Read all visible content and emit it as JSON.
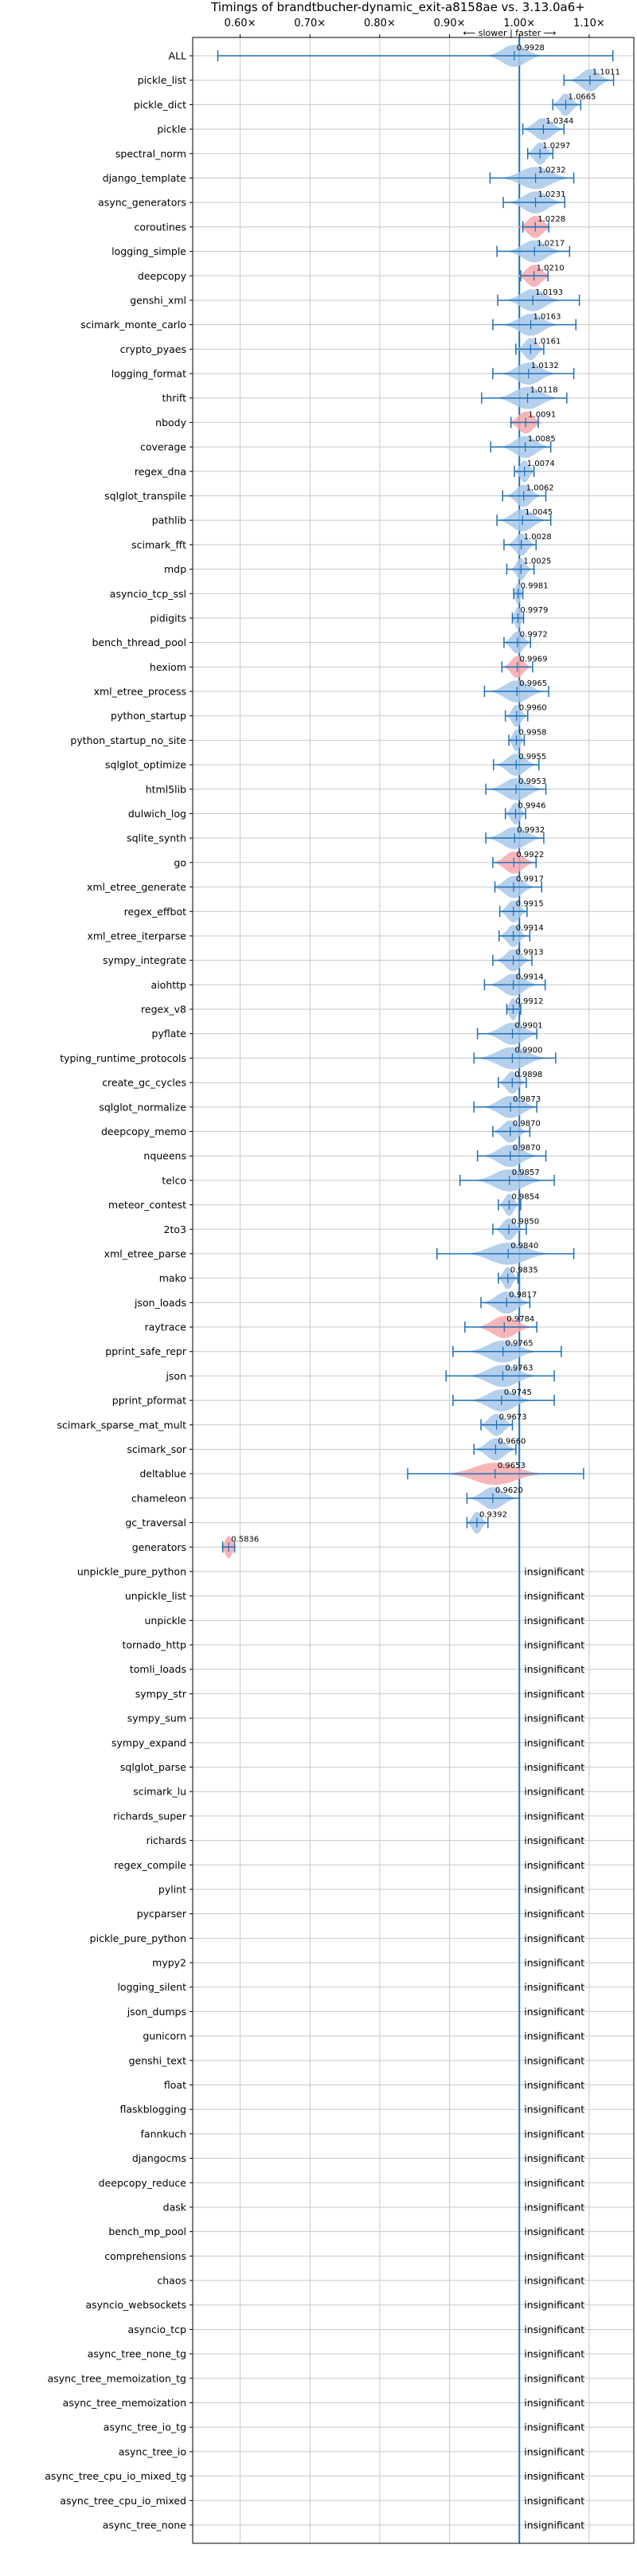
{
  "chart_data": {
    "type": "violin",
    "title": "Timings of brandtbucher-dynamic_exit-a8158ae vs. 3.13.0a6+",
    "direction_label": "⟵ slower | faster ⟶",
    "insignificant_label": "insignificant",
    "x_tick_labels": [
      "0.60×",
      "0.70×",
      "0.80×",
      "0.90×",
      "1.00×",
      "1.10×"
    ],
    "x_ticks": [
      0.6,
      0.7,
      0.8,
      0.9,
      1.0,
      1.1
    ],
    "xlim": [
      0.532,
      1.164
    ],
    "reference_line": 1.0,
    "grid": true,
    "colors": {
      "faster": "#4a90d9",
      "slower": "#f08080",
      "insig": "#4a90d9",
      "line": "#1f6fb5",
      "grid": "#c8c8c8"
    },
    "benchmarks": [
      {
        "name": "ALL",
        "value": 0.9928,
        "label": "0.9928",
        "low": 0.568,
        "high": 1.134,
        "width": 0.04,
        "color": "faster"
      },
      {
        "name": "pickle_list",
        "value": 1.1011,
        "label": "1.1011",
        "low": 1.064,
        "high": 1.135,
        "width": 0.03,
        "color": "faster"
      },
      {
        "name": "pickle_dict",
        "value": 1.0665,
        "label": "1.0665",
        "low": 1.048,
        "high": 1.088,
        "width": 0.02,
        "color": "faster"
      },
      {
        "name": "pickle",
        "value": 1.0344,
        "label": "1.0344",
        "low": 1.005,
        "high": 1.064,
        "width": 0.03,
        "color": "faster"
      },
      {
        "name": "spectral_norm",
        "value": 1.0297,
        "label": "1.0297",
        "low": 1.012,
        "high": 1.048,
        "width": 0.02,
        "color": "faster"
      },
      {
        "name": "django_template",
        "value": 1.0232,
        "label": "1.0232",
        "low": 0.958,
        "high": 1.078,
        "width": 0.05,
        "color": "faster"
      },
      {
        "name": "async_generators",
        "value": 1.0231,
        "label": "1.0231",
        "low": 0.977,
        "high": 1.065,
        "width": 0.04,
        "color": "faster"
      },
      {
        "name": "coroutines",
        "value": 1.0228,
        "label": "1.0228",
        "low": 1.005,
        "high": 1.042,
        "width": 0.025,
        "color": "slower"
      },
      {
        "name": "logging_simple",
        "value": 1.0217,
        "label": "1.0217",
        "low": 0.968,
        "high": 1.072,
        "width": 0.04,
        "color": "faster"
      },
      {
        "name": "deepcopy",
        "value": 1.021,
        "label": "1.0210",
        "low": 1.002,
        "high": 1.041,
        "width": 0.025,
        "color": "slower"
      },
      {
        "name": "genshi_xml",
        "value": 1.0193,
        "label": "1.0193",
        "low": 0.969,
        "high": 1.086,
        "width": 0.04,
        "color": "faster"
      },
      {
        "name": "scimark_monte_carlo",
        "value": 1.0163,
        "label": "1.0163",
        "low": 0.962,
        "high": 1.081,
        "width": 0.04,
        "color": "faster"
      },
      {
        "name": "crypto_pyaes",
        "value": 1.0161,
        "label": "1.0161",
        "low": 0.995,
        "high": 1.035,
        "width": 0.02,
        "color": "faster"
      },
      {
        "name": "logging_format",
        "value": 1.0132,
        "label": "1.0132",
        "low": 0.962,
        "high": 1.078,
        "width": 0.04,
        "color": "faster"
      },
      {
        "name": "thrift",
        "value": 1.0118,
        "label": "1.0118",
        "low": 0.946,
        "high": 1.068,
        "width": 0.045,
        "color": "faster"
      },
      {
        "name": "nbody",
        "value": 1.0091,
        "label": "1.0091",
        "low": 0.988,
        "high": 1.027,
        "width": 0.025,
        "color": "slower"
      },
      {
        "name": "coverage",
        "value": 1.0085,
        "label": "1.0085",
        "low": 0.959,
        "high": 1.045,
        "width": 0.035,
        "color": "faster"
      },
      {
        "name": "regex_dna",
        "value": 1.0074,
        "label": "1.0074",
        "low": 0.993,
        "high": 1.021,
        "width": 0.015,
        "color": "faster"
      },
      {
        "name": "sqlglot_transpile",
        "value": 1.0062,
        "label": "1.0062",
        "low": 0.976,
        "high": 1.038,
        "width": 0.025,
        "color": "faster"
      },
      {
        "name": "pathlib",
        "value": 1.0045,
        "label": "1.0045",
        "low": 0.968,
        "high": 1.045,
        "width": 0.035,
        "color": "faster"
      },
      {
        "name": "scimark_fft",
        "value": 1.0028,
        "label": "1.0028",
        "low": 0.978,
        "high": 1.024,
        "width": 0.02,
        "color": "faster"
      },
      {
        "name": "mdp",
        "value": 1.0025,
        "label": "1.0025",
        "low": 0.982,
        "high": 1.021,
        "width": 0.015,
        "color": "faster"
      },
      {
        "name": "asyncio_tcp_ssl",
        "value": 0.9981,
        "label": "0.9981",
        "low": 0.992,
        "high": 1.005,
        "width": 0.008,
        "color": "faster"
      },
      {
        "name": "pidigits",
        "value": 0.9979,
        "label": "0.9979",
        "low": 0.99,
        "high": 1.006,
        "width": 0.01,
        "color": "faster"
      },
      {
        "name": "bench_thread_pool",
        "value": 0.9972,
        "label": "0.9972",
        "low": 0.978,
        "high": 1.016,
        "width": 0.02,
        "color": "faster"
      },
      {
        "name": "hexiom",
        "value": 0.9969,
        "label": "0.9969",
        "low": 0.975,
        "high": 1.019,
        "width": 0.02,
        "color": "slower"
      },
      {
        "name": "xml_etree_process",
        "value": 0.9965,
        "label": "0.9965",
        "low": 0.95,
        "high": 1.042,
        "width": 0.04,
        "color": "faster"
      },
      {
        "name": "python_startup",
        "value": 0.996,
        "label": "0.9960",
        "low": 0.98,
        "high": 1.012,
        "width": 0.015,
        "color": "faster"
      },
      {
        "name": "python_startup_no_site",
        "value": 0.9958,
        "label": "0.9958",
        "low": 0.985,
        "high": 1.007,
        "width": 0.012,
        "color": "faster"
      },
      {
        "name": "sqlglot_optimize",
        "value": 0.9955,
        "label": "0.9955",
        "low": 0.963,
        "high": 1.028,
        "width": 0.03,
        "color": "faster"
      },
      {
        "name": "html5lib",
        "value": 0.9953,
        "label": "0.9953",
        "low": 0.952,
        "high": 1.038,
        "width": 0.04,
        "color": "faster"
      },
      {
        "name": "dulwich_log",
        "value": 0.9946,
        "label": "0.9946",
        "low": 0.98,
        "high": 1.009,
        "width": 0.015,
        "color": "faster"
      },
      {
        "name": "sqlite_synth",
        "value": 0.9932,
        "label": "0.9932",
        "low": 0.952,
        "high": 1.035,
        "width": 0.04,
        "color": "faster"
      },
      {
        "name": "go",
        "value": 0.9922,
        "label": "0.9922",
        "low": 0.962,
        "high": 1.024,
        "width": 0.03,
        "color": "slower"
      },
      {
        "name": "xml_etree_generate",
        "value": 0.9917,
        "label": "0.9917",
        "low": 0.965,
        "high": 1.032,
        "width": 0.03,
        "color": "faster"
      },
      {
        "name": "regex_effbot",
        "value": 0.9915,
        "label": "0.9915",
        "low": 0.972,
        "high": 1.011,
        "width": 0.02,
        "color": "faster"
      },
      {
        "name": "xml_etree_iterparse",
        "value": 0.9914,
        "label": "0.9914",
        "low": 0.971,
        "high": 1.015,
        "width": 0.02,
        "color": "faster"
      },
      {
        "name": "sympy_integrate",
        "value": 0.9913,
        "label": "0.9913",
        "low": 0.962,
        "high": 1.018,
        "width": 0.025,
        "color": "faster"
      },
      {
        "name": "aiohttp",
        "value": 0.9914,
        "label": "0.9914",
        "low": 0.95,
        "high": 1.037,
        "width": 0.035,
        "color": "faster"
      },
      {
        "name": "regex_v8",
        "value": 0.9912,
        "label": "0.9912",
        "low": 0.982,
        "high": 1.002,
        "width": 0.012,
        "color": "faster"
      },
      {
        "name": "pyflate",
        "value": 0.9901,
        "label": "0.9901",
        "low": 0.94,
        "high": 1.025,
        "width": 0.04,
        "color": "faster"
      },
      {
        "name": "typing_runtime_protocols",
        "value": 0.99,
        "label": "0.9900",
        "low": 0.935,
        "high": 1.052,
        "width": 0.05,
        "color": "faster"
      },
      {
        "name": "create_gc_cycles",
        "value": 0.9898,
        "label": "0.9898",
        "low": 0.97,
        "high": 1.01,
        "width": 0.02,
        "color": "faster"
      },
      {
        "name": "sqlglot_normalize",
        "value": 0.9873,
        "label": "0.9873",
        "low": 0.935,
        "high": 1.025,
        "width": 0.04,
        "color": "faster"
      },
      {
        "name": "deepcopy_memo",
        "value": 0.987,
        "label": "0.9870",
        "low": 0.962,
        "high": 1.015,
        "width": 0.025,
        "color": "faster"
      },
      {
        "name": "nqueens",
        "value": 0.987,
        "label": "0.9870",
        "low": 0.94,
        "high": 1.038,
        "width": 0.04,
        "color": "faster"
      },
      {
        "name": "telco",
        "value": 0.9857,
        "label": "0.9857",
        "low": 0.915,
        "high": 1.05,
        "width": 0.05,
        "color": "faster"
      },
      {
        "name": "meteor_contest",
        "value": 0.9854,
        "label": "0.9854",
        "low": 0.97,
        "high": 1.002,
        "width": 0.015,
        "color": "faster"
      },
      {
        "name": "2to3",
        "value": 0.985,
        "label": "0.9850",
        "low": 0.962,
        "high": 1.01,
        "width": 0.02,
        "color": "faster"
      },
      {
        "name": "xml_etree_parse",
        "value": 0.984,
        "label": "0.9840",
        "low": 0.882,
        "high": 1.078,
        "width": 0.06,
        "color": "faster"
      },
      {
        "name": "mako",
        "value": 0.9835,
        "label": "0.9835",
        "low": 0.97,
        "high": 0.998,
        "width": 0.015,
        "color": "faster"
      },
      {
        "name": "json_loads",
        "value": 0.9817,
        "label": "0.9817",
        "low": 0.945,
        "high": 1.015,
        "width": 0.035,
        "color": "faster"
      },
      {
        "name": "raytrace",
        "value": 0.9784,
        "label": "0.9784",
        "low": 0.922,
        "high": 1.025,
        "width": 0.04,
        "color": "slower"
      },
      {
        "name": "pprint_safe_repr",
        "value": 0.9765,
        "label": "0.9765",
        "low": 0.905,
        "high": 1.06,
        "width": 0.05,
        "color": "faster"
      },
      {
        "name": "json",
        "value": 0.9763,
        "label": "0.9763",
        "low": 0.895,
        "high": 1.05,
        "width": 0.05,
        "color": "faster"
      },
      {
        "name": "pprint_pformat",
        "value": 0.9745,
        "label": "0.9745",
        "low": 0.905,
        "high": 1.05,
        "width": 0.045,
        "color": "faster"
      },
      {
        "name": "scimark_sparse_mat_mult",
        "value": 0.9673,
        "label": "0.9673",
        "low": 0.945,
        "high": 0.99,
        "width": 0.025,
        "color": "faster"
      },
      {
        "name": "scimark_sor",
        "value": 0.966,
        "label": "0.9660",
        "low": 0.935,
        "high": 0.995,
        "width": 0.03,
        "color": "faster"
      },
      {
        "name": "deltablue",
        "value": 0.9653,
        "label": "0.9653",
        "low": 0.84,
        "high": 1.092,
        "width": 0.07,
        "color": "slower"
      },
      {
        "name": "chameleon",
        "value": 0.962,
        "label": "0.9620",
        "low": 0.925,
        "high": 1.0,
        "width": 0.035,
        "color": "faster"
      },
      {
        "name": "gc_traversal",
        "value": 0.9392,
        "label": "0.9392",
        "low": 0.925,
        "high": 0.955,
        "width": 0.015,
        "color": "faster"
      },
      {
        "name": "generators",
        "value": 0.5836,
        "label": "0.5836",
        "low": 0.575,
        "high": 0.592,
        "width": 0.012,
        "color": "slower"
      },
      {
        "name": "unpickle_pure_python",
        "insignificant": true
      },
      {
        "name": "unpickle_list",
        "insignificant": true
      },
      {
        "name": "unpickle",
        "insignificant": true
      },
      {
        "name": "tornado_http",
        "insignificant": true
      },
      {
        "name": "tomli_loads",
        "insignificant": true
      },
      {
        "name": "sympy_str",
        "insignificant": true
      },
      {
        "name": "sympy_sum",
        "insignificant": true
      },
      {
        "name": "sympy_expand",
        "insignificant": true
      },
      {
        "name": "sqlglot_parse",
        "insignificant": true
      },
      {
        "name": "scimark_lu",
        "insignificant": true
      },
      {
        "name": "richards_super",
        "insignificant": true
      },
      {
        "name": "richards",
        "insignificant": true
      },
      {
        "name": "regex_compile",
        "insignificant": true
      },
      {
        "name": "pylint",
        "insignificant": true
      },
      {
        "name": "pycparser",
        "insignificant": true
      },
      {
        "name": "pickle_pure_python",
        "insignificant": true
      },
      {
        "name": "mypy2",
        "insignificant": true
      },
      {
        "name": "logging_silent",
        "insignificant": true
      },
      {
        "name": "json_dumps",
        "insignificant": true
      },
      {
        "name": "gunicorn",
        "insignificant": true
      },
      {
        "name": "genshi_text",
        "insignificant": true
      },
      {
        "name": "float",
        "insignificant": true
      },
      {
        "name": "flaskblogging",
        "insignificant": true
      },
      {
        "name": "fannkuch",
        "insignificant": true
      },
      {
        "name": "djangocms",
        "insignificant": true
      },
      {
        "name": "deepcopy_reduce",
        "insignificant": true
      },
      {
        "name": "dask",
        "insignificant": true
      },
      {
        "name": "bench_mp_pool",
        "insignificant": true
      },
      {
        "name": "comprehensions",
        "insignificant": true
      },
      {
        "name": "chaos",
        "insignificant": true
      },
      {
        "name": "asyncio_websockets",
        "insignificant": true
      },
      {
        "name": "asyncio_tcp",
        "insignificant": true
      },
      {
        "name": "async_tree_none_tg",
        "insignificant": true
      },
      {
        "name": "async_tree_memoization_tg",
        "insignificant": true
      },
      {
        "name": "async_tree_memoization",
        "insignificant": true
      },
      {
        "name": "async_tree_io_tg",
        "insignificant": true
      },
      {
        "name": "async_tree_io",
        "insignificant": true
      },
      {
        "name": "async_tree_cpu_io_mixed_tg",
        "insignificant": true
      },
      {
        "name": "async_tree_cpu_io_mixed",
        "insignificant": true
      },
      {
        "name": "async_tree_none",
        "insignificant": true
      }
    ]
  }
}
